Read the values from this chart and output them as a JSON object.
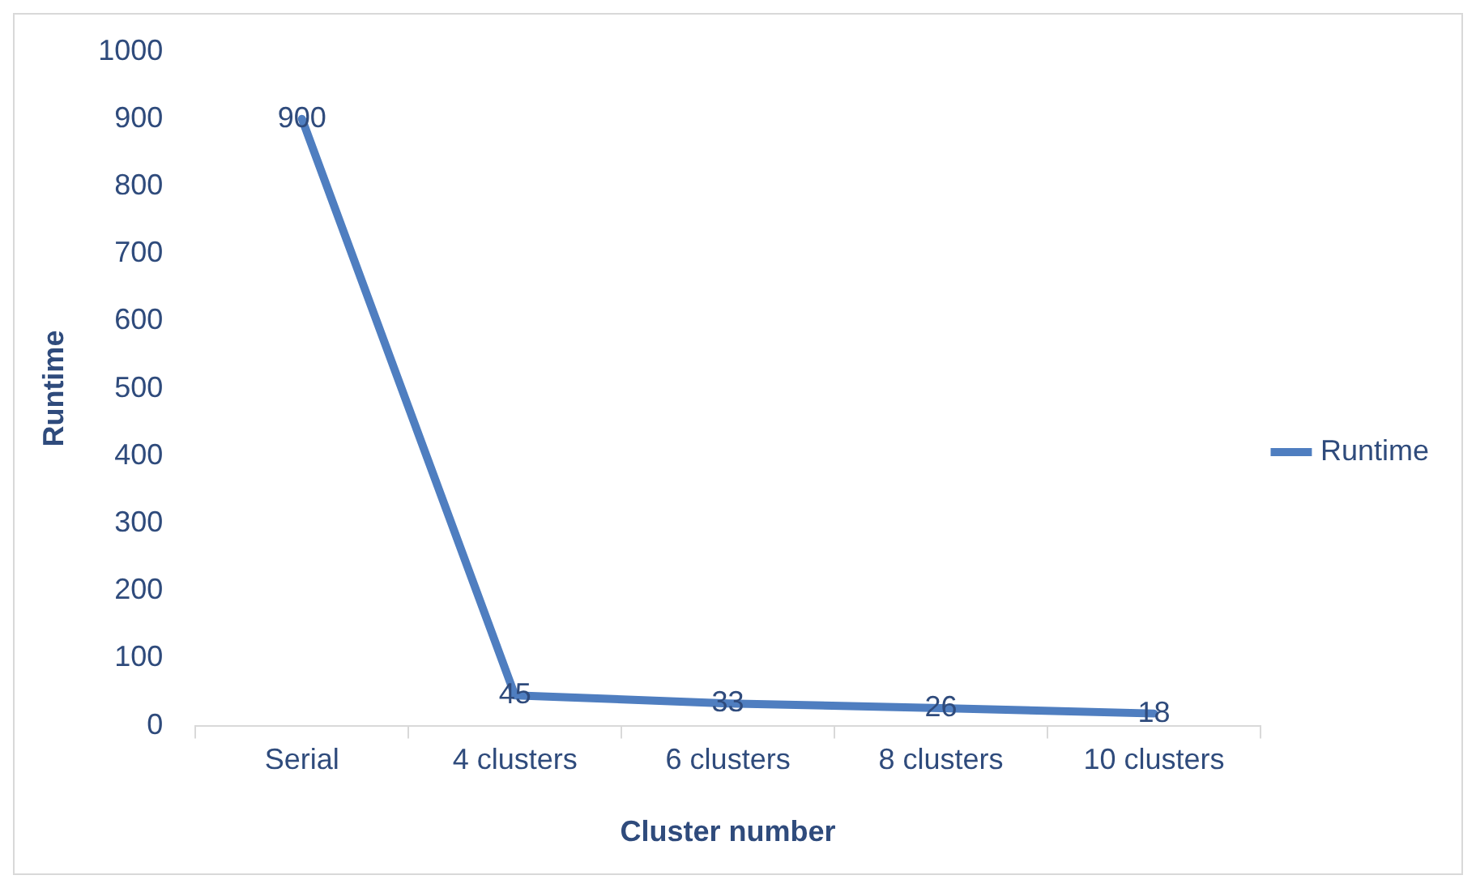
{
  "chart_data": {
    "type": "line",
    "xlabel": "Cluster number",
    "ylabel": "Runtime",
    "categories": [
      "Serial",
      "4 clusters",
      "6 clusters",
      "8 clusters",
      "10 clusters"
    ],
    "series": [
      {
        "name": "Runtime",
        "color": "#4f7ec0",
        "values": [
          900,
          45,
          33,
          26,
          18
        ]
      }
    ],
    "ylim": [
      0,
      1000
    ],
    "yticks": [
      0,
      100,
      200,
      300,
      400,
      500,
      600,
      700,
      800,
      900,
      1000
    ],
    "grid": false,
    "legend": "right",
    "marker": "none",
    "line_style": "solid",
    "data_labels": true
  }
}
